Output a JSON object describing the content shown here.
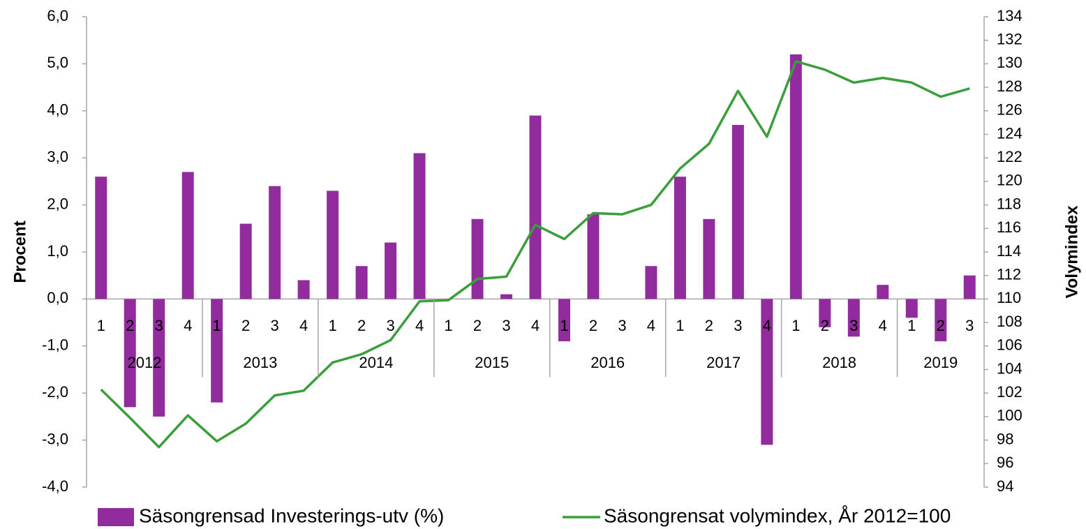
{
  "chart_data": {
    "type": "bar_line",
    "categories": [
      "1",
      "2",
      "3",
      "4",
      "1",
      "2",
      "3",
      "4",
      "1",
      "2",
      "3",
      "4",
      "1",
      "2",
      "3",
      "4",
      "1",
      "2",
      "3",
      "4",
      "1",
      "2",
      "3",
      "4",
      "1",
      "2",
      "3",
      "4",
      "1",
      "2",
      "3"
    ],
    "category_groups": [
      {
        "label": "2012",
        "categories": [
          "1",
          "2",
          "3",
          "4"
        ]
      },
      {
        "label": "2013",
        "categories": [
          "1",
          "2",
          "3",
          "4"
        ]
      },
      {
        "label": "2014",
        "categories": [
          "1",
          "2",
          "3",
          "4"
        ]
      },
      {
        "label": "2015",
        "categories": [
          "1",
          "2",
          "3",
          "4"
        ]
      },
      {
        "label": "2016",
        "categories": [
          "1",
          "2",
          "3",
          "4"
        ]
      },
      {
        "label": "2017",
        "categories": [
          "1",
          "2",
          "3",
          "4"
        ]
      },
      {
        "label": "2018",
        "categories": [
          "1",
          "2",
          "3",
          "4"
        ]
      },
      {
        "label": "2019",
        "categories": [
          "1",
          "2",
          "3"
        ]
      }
    ],
    "series": [
      {
        "name": "Säsongrensad Investerings-utv (%)",
        "type": "bar",
        "color": "#922b9e",
        "values": [
          2.6,
          -2.3,
          -2.5,
          2.7,
          -2.2,
          1.6,
          2.4,
          0.4,
          2.3,
          0.7,
          1.2,
          3.1,
          0,
          1.7,
          0.1,
          3.9,
          -0.9,
          1.8,
          0,
          0.7,
          2.6,
          1.7,
          3.7,
          -3.1,
          5.2,
          -0.6,
          -0.8,
          0.3,
          -0.4,
          -0.9,
          0.5
        ]
      },
      {
        "name": "Säsongrensat volymindex, År 2012=100",
        "type": "line",
        "axis": "y2",
        "color": "#3a9e3a",
        "values": [
          102.3,
          99.9,
          97.4,
          100.1,
          97.9,
          99.4,
          101.8,
          102.2,
          104.6,
          105.3,
          106.5,
          109.8,
          109.9,
          111.7,
          111.9,
          116.3,
          115.1,
          117.3,
          117.2,
          118.0,
          121.1,
          123.2,
          127.7,
          123.8,
          130.2,
          129.5,
          128.4,
          128.8,
          128.4,
          127.2,
          127.9
        ]
      }
    ],
    "ylabel": "Procent",
    "y2label": "Volymindex",
    "ylim": [
      -4,
      6
    ],
    "yticks": [
      {
        "value": -4,
        "label": "-4,0"
      },
      {
        "value": -3,
        "label": "-3,0"
      },
      {
        "value": -2,
        "label": "-2,0"
      },
      {
        "value": -1,
        "label": "-1,0"
      },
      {
        "value": 0,
        "label": "0,0"
      },
      {
        "value": 1,
        "label": "1,0"
      },
      {
        "value": 2,
        "label": "2,0"
      },
      {
        "value": 3,
        "label": "3,0"
      },
      {
        "value": 4,
        "label": "4,0"
      },
      {
        "value": 5,
        "label": "5,0"
      },
      {
        "value": 6,
        "label": "6,0"
      }
    ],
    "y2lim": [
      94,
      134
    ],
    "y2ticks": [
      94,
      96,
      98,
      100,
      102,
      104,
      106,
      108,
      110,
      112,
      114,
      116,
      118,
      120,
      122,
      124,
      126,
      128,
      130,
      132,
      134
    ],
    "legend": "bottom",
    "grid": false
  }
}
